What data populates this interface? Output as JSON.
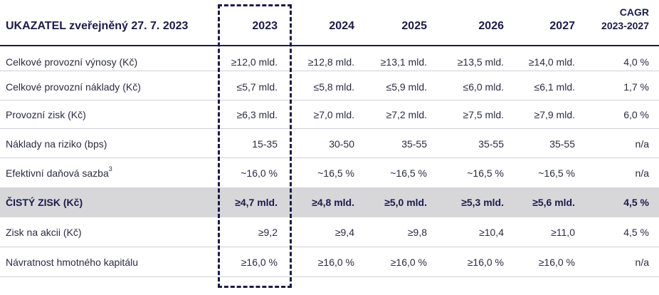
{
  "header": {
    "title": "UKAZATEL zveřejněný 27. 7. 2023",
    "years": [
      "2023",
      "2024",
      "2025",
      "2026",
      "2027"
    ],
    "cagr_line1": "CAGR",
    "cagr_line2": "2023-2027"
  },
  "rows": [
    {
      "label": "Celkové provozní výnosy (Kč)",
      "v2023": "≥12,0 mld.",
      "v2024": "≥12,8 mld.",
      "v2025": "≥13,1 mld.",
      "v2026": "≥13,5 mld.",
      "v2027": "≥14,0 mld.",
      "cagr": "4,0 %"
    },
    {
      "label": "Celkové provozní náklady (Kč)",
      "v2023": "≤5,7 mld.",
      "v2024": "≤5,8 mld.",
      "v2025": "≤5,9 mld.",
      "v2026": "≤6,0 mld.",
      "v2027": "≤6,1 mld.",
      "cagr": "1,7 %"
    },
    {
      "label": "Provozní zisk (Kč)",
      "v2023": "≥6,3 mld.",
      "v2024": "≥7,0 mld.",
      "v2025": "≥7,2 mld.",
      "v2026": "≥7,5 mld.",
      "v2027": "≥7,9 mld.",
      "cagr": "6,0 %"
    },
    {
      "label": "Náklady na riziko (bps)",
      "v2023": "15-35",
      "v2024": "30-50",
      "v2025": "35-55",
      "v2026": "35-55",
      "v2027": "35-55",
      "cagr": "n/a"
    },
    {
      "label": "Efektivní daňová sazba",
      "sup": "3",
      "v2023": "~16,0 %",
      "v2024": "~16,5 %",
      "v2025": "~16,5 %",
      "v2026": "~16,5 %",
      "v2027": "~16,5 %",
      "cagr": "n/a"
    },
    {
      "label": "ČISTÝ ZISK (Kč)",
      "v2023": "≥4,7 mld.",
      "v2024": "≥4,8 mld.",
      "v2025": "≥5,0 mld.",
      "v2026": "≥5,3 mld.",
      "v2027": "≥5,6 mld.",
      "cagr": "4,5 %"
    },
    {
      "label": "Zisk na akcii (Kč)",
      "v2023": "≥9,2",
      "v2024": "≥9,4",
      "v2025": "≥9,8",
      "v2026": "≥10,4",
      "v2027": "≥11,0",
      "cagr": "4,5 %"
    },
    {
      "label": "Návratnost hmotného kapitálu",
      "v2023": "≥16,0 %",
      "v2024": "≥16,0 %",
      "v2025": "≥16,0 %",
      "v2026": "≥16,0 %",
      "v2027": "≥16,0 %",
      "cagr": "n/a"
    }
  ]
}
